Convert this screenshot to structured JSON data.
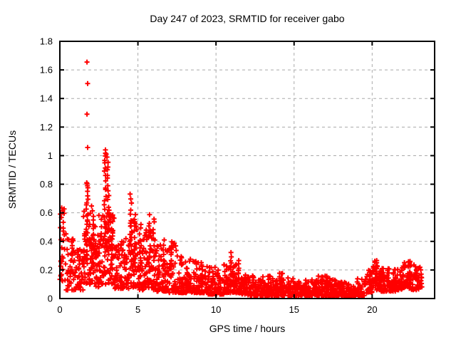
{
  "page": {
    "background": "#ffffff"
  },
  "chart_data": {
    "type": "scatter",
    "title": "Day 247 of 2023, SRMTID for receiver gabo",
    "xlabel": "GPS time / hours",
    "ylabel": "SRMTID / TECUs",
    "xlim": [
      0,
      24
    ],
    "ylim": [
      0,
      1.8
    ],
    "xticks": [
      0,
      5,
      10,
      15,
      20
    ],
    "xtick_labels": [
      "0",
      "5",
      "10",
      "15",
      "20"
    ],
    "yticks": [
      0,
      0.2,
      0.4,
      0.6,
      0.8,
      1.0,
      1.2,
      1.4,
      1.6,
      1.8
    ],
    "ytick_labels": [
      "0",
      "0.2",
      "0.4",
      "0.6",
      "0.8",
      "1",
      "1.2",
      "1.4",
      "1.6",
      "1.8"
    ],
    "grid": true,
    "legend": "none",
    "marker": "plus",
    "marker_color": "#ff0000",
    "grid_color": "#aaaaaa",
    "border_color": "#000000",
    "text_color": "#000000",
    "seed": 7,
    "generator": {
      "comment": "dense noisy scatter; bins=[t0,t1,lo,hi,count,power] baseline bands, streaks=[tCenter,tSpread,lo,hi,count] vertical burst columns",
      "bins": [
        [
          0.0,
          0.4,
          0.12,
          0.65,
          32,
          1.3
        ],
        [
          0.4,
          1.0,
          0.06,
          0.42,
          46,
          1.8
        ],
        [
          1.0,
          1.5,
          0.05,
          0.35,
          40,
          1.8
        ],
        [
          1.5,
          2.0,
          0.1,
          0.62,
          46,
          1.5
        ],
        [
          2.0,
          2.5,
          0.08,
          0.55,
          46,
          1.7
        ],
        [
          2.5,
          3.0,
          0.1,
          0.6,
          46,
          1.5
        ],
        [
          3.0,
          3.5,
          0.1,
          0.62,
          50,
          1.5
        ],
        [
          3.5,
          4.0,
          0.07,
          0.4,
          45,
          1.8
        ],
        [
          4.0,
          4.5,
          0.07,
          0.45,
          45,
          1.8
        ],
        [
          4.5,
          5.0,
          0.08,
          0.55,
          45,
          1.7
        ],
        [
          5.0,
          5.5,
          0.06,
          0.5,
          45,
          1.8
        ],
        [
          5.5,
          6.0,
          0.07,
          0.52,
          45,
          1.7
        ],
        [
          6.0,
          6.5,
          0.05,
          0.42,
          42,
          1.8
        ],
        [
          6.5,
          7.0,
          0.05,
          0.38,
          42,
          1.9
        ],
        [
          7.0,
          7.5,
          0.04,
          0.4,
          42,
          2.0
        ],
        [
          7.5,
          8.0,
          0.04,
          0.3,
          42,
          2.0
        ],
        [
          8.0,
          8.5,
          0.04,
          0.28,
          42,
          2.0
        ],
        [
          8.5,
          9.0,
          0.04,
          0.26,
          42,
          2.0
        ],
        [
          9.0,
          9.5,
          0.04,
          0.26,
          42,
          2.0
        ],
        [
          9.5,
          10.0,
          0.03,
          0.22,
          42,
          2.0
        ],
        [
          10.0,
          10.5,
          0.03,
          0.2,
          42,
          2.0
        ],
        [
          10.5,
          11.0,
          0.04,
          0.24,
          42,
          2.0
        ],
        [
          11.0,
          11.5,
          0.04,
          0.24,
          42,
          2.0
        ],
        [
          11.5,
          12.0,
          0.03,
          0.18,
          42,
          2.0
        ],
        [
          12.0,
          12.5,
          0.02,
          0.16,
          42,
          2.0
        ],
        [
          12.5,
          13.0,
          0.02,
          0.14,
          42,
          2.0
        ],
        [
          13.0,
          13.5,
          0.02,
          0.17,
          42,
          2.0
        ],
        [
          13.5,
          14.0,
          0.02,
          0.14,
          42,
          2.0
        ],
        [
          14.0,
          14.5,
          0.02,
          0.18,
          42,
          2.0
        ],
        [
          14.5,
          15.0,
          0.02,
          0.15,
          42,
          2.0
        ],
        [
          15.0,
          15.5,
          0.02,
          0.13,
          42,
          2.0
        ],
        [
          15.5,
          16.0,
          0.02,
          0.13,
          42,
          2.0
        ],
        [
          16.0,
          16.5,
          0.02,
          0.14,
          42,
          2.0
        ],
        [
          16.5,
          17.0,
          0.02,
          0.17,
          42,
          2.0
        ],
        [
          17.0,
          17.5,
          0.02,
          0.16,
          42,
          2.0
        ],
        [
          17.5,
          18.0,
          0.02,
          0.13,
          42,
          2.0
        ],
        [
          18.0,
          18.5,
          0.015,
          0.12,
          45,
          2.2
        ],
        [
          18.5,
          19.0,
          0.015,
          0.09,
          45,
          2.2
        ],
        [
          19.0,
          19.5,
          0.02,
          0.14,
          42,
          1.9
        ],
        [
          19.5,
          20.0,
          0.04,
          0.2,
          42,
          1.7
        ],
        [
          20.0,
          20.5,
          0.06,
          0.28,
          42,
          1.5
        ],
        [
          20.5,
          21.0,
          0.05,
          0.24,
          42,
          1.6
        ],
        [
          21.0,
          21.5,
          0.05,
          0.22,
          42,
          1.6
        ],
        [
          21.5,
          22.0,
          0.06,
          0.24,
          45,
          1.5
        ],
        [
          22.0,
          22.5,
          0.07,
          0.26,
          45,
          1.4
        ],
        [
          22.5,
          23.2,
          0.06,
          0.24,
          50,
          1.5
        ]
      ],
      "streaks": [
        [
          1.75,
          0.15,
          0.25,
          0.82,
          22
        ],
        [
          2.1,
          0.15,
          0.2,
          0.66,
          15
        ],
        [
          2.9,
          0.12,
          0.3,
          1.04,
          22
        ],
        [
          3.1,
          0.12,
          0.3,
          0.97,
          18
        ],
        [
          3.35,
          0.1,
          0.2,
          0.6,
          10
        ],
        [
          4.55,
          0.12,
          0.25,
          0.76,
          14
        ],
        [
          4.8,
          0.1,
          0.2,
          0.62,
          10
        ],
        [
          5.15,
          0.1,
          0.2,
          0.55,
          8
        ],
        [
          5.75,
          0.1,
          0.2,
          0.6,
          10
        ],
        [
          6.0,
          0.1,
          0.2,
          0.58,
          10
        ],
        [
          6.65,
          0.08,
          0.15,
          0.42,
          8
        ],
        [
          7.15,
          0.1,
          0.15,
          0.42,
          8
        ],
        [
          9.1,
          0.08,
          0.1,
          0.26,
          6
        ],
        [
          10.95,
          0.08,
          0.1,
          0.33,
          10
        ],
        [
          11.45,
          0.06,
          0.1,
          0.28,
          6
        ],
        [
          13.35,
          0.06,
          0.06,
          0.17,
          5
        ],
        [
          14.2,
          0.05,
          0.06,
          0.18,
          5
        ],
        [
          16.55,
          0.05,
          0.05,
          0.17,
          4
        ],
        [
          17.3,
          0.05,
          0.05,
          0.16,
          4
        ],
        [
          20.25,
          0.1,
          0.1,
          0.28,
          8
        ],
        [
          22.4,
          0.1,
          0.1,
          0.27,
          8
        ]
      ]
    },
    "outliers": [
      [
        1.74,
        1.655
      ],
      [
        1.78,
        1.505
      ],
      [
        1.74,
        1.29
      ],
      [
        1.78,
        1.057
      ],
      [
        2.92,
        1.04
      ],
      [
        2.97,
        1.01
      ],
      [
        3.02,
        0.99
      ],
      [
        2.88,
        0.95
      ],
      [
        3.08,
        0.92
      ],
      [
        1.72,
        0.81
      ],
      [
        1.76,
        0.79
      ]
    ]
  }
}
